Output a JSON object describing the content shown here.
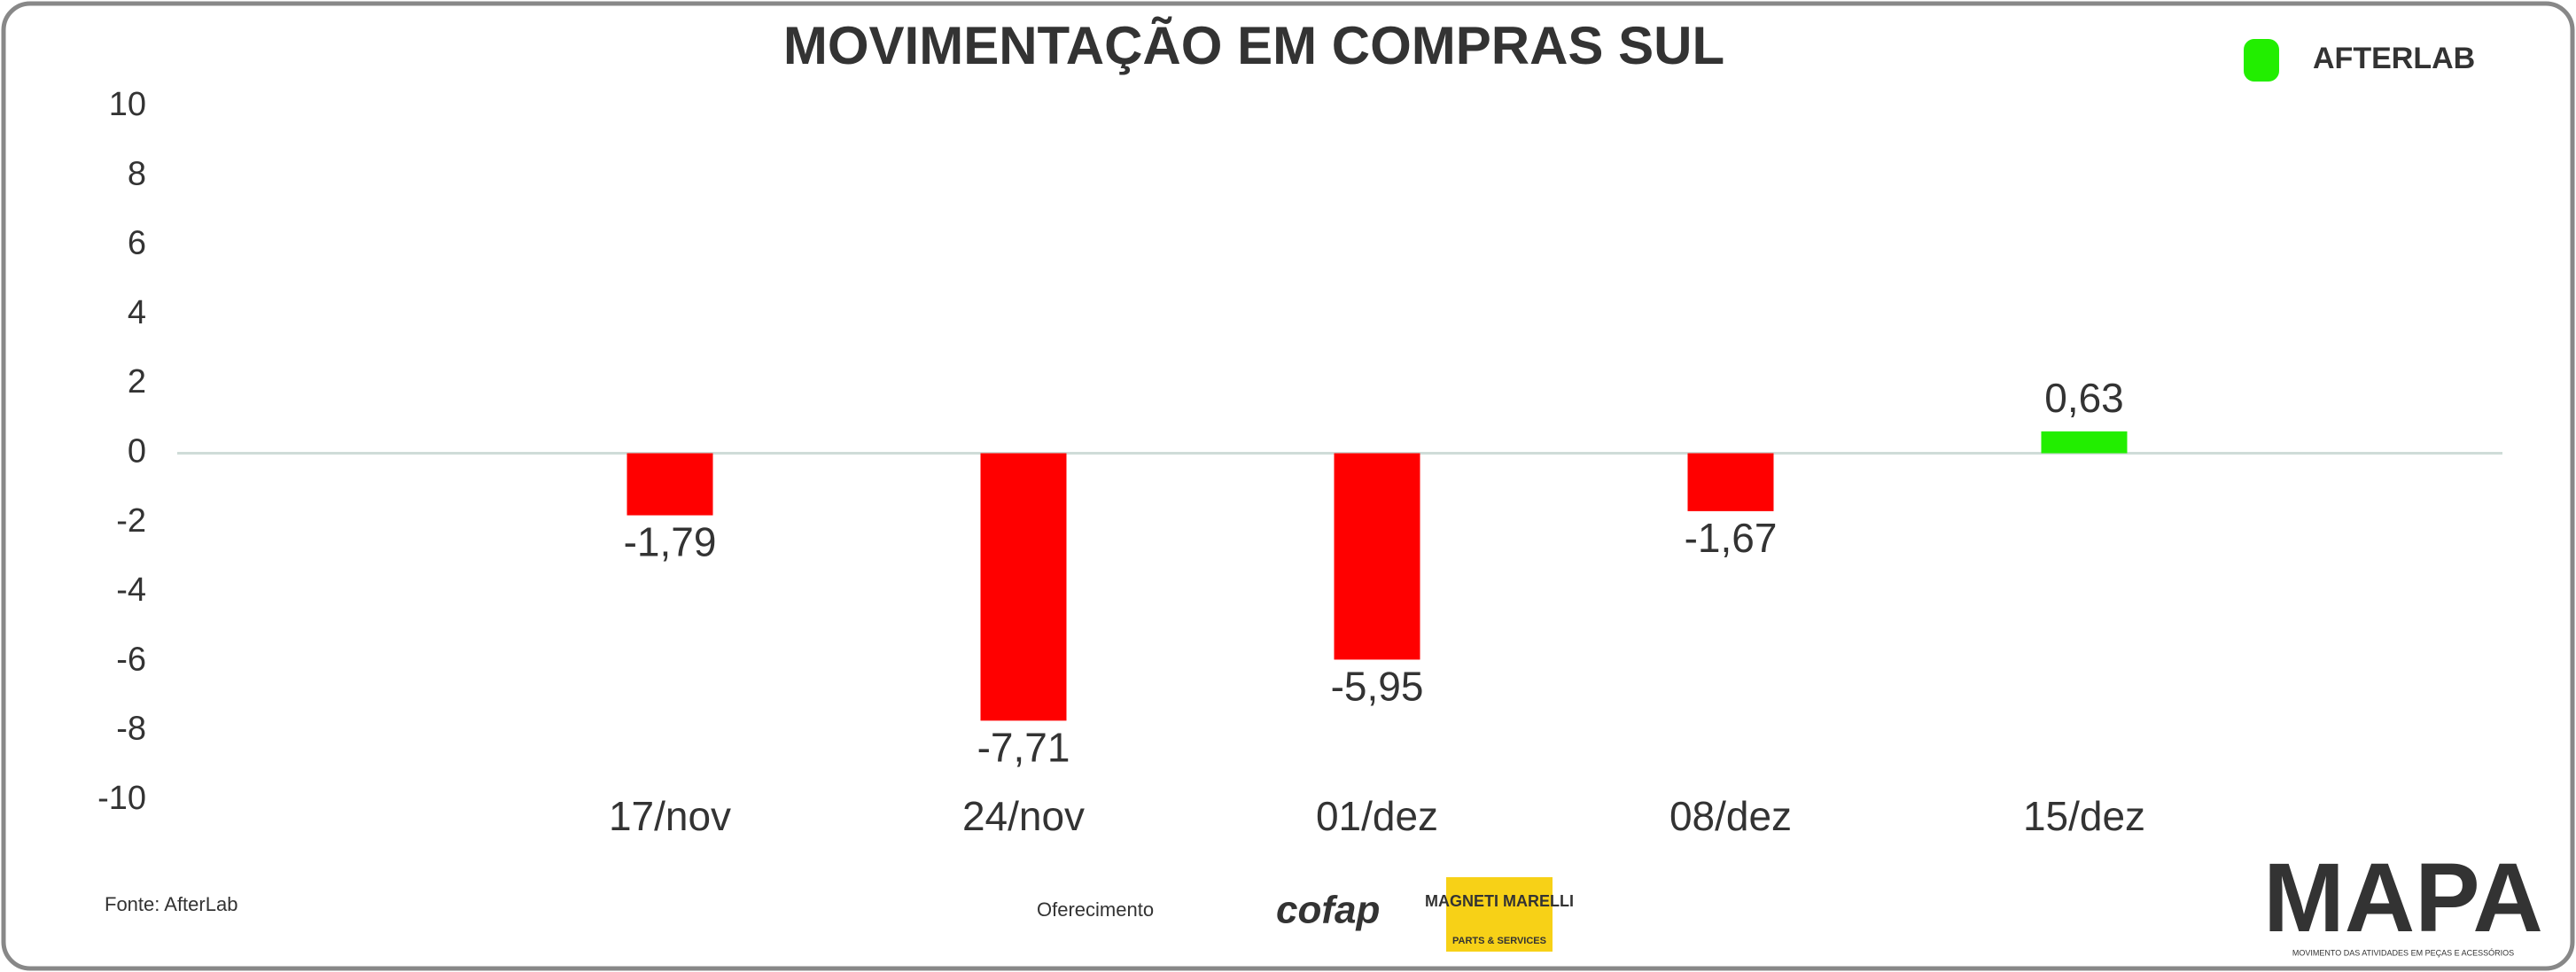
{
  "chart_data": {
    "type": "bar",
    "title": "MOVIMENTAÇÃO EM COMPRAS SUL",
    "categories": [
      "17/nov",
      "24/nov",
      "01/dez",
      "08/dez",
      "15/dez"
    ],
    "values": [
      -1.79,
      -7.71,
      -5.95,
      -1.67,
      0.63
    ],
    "value_labels": [
      "-1,79",
      "-7,71",
      "-5,95",
      "-1,67",
      "0,63"
    ],
    "colors": [
      "#ff0000",
      "#ff0000",
      "#ff0000",
      "#ff0000",
      "#22ee00"
    ],
    "ylim": [
      -10,
      10
    ],
    "yticks": [
      -10,
      -8,
      -6,
      -4,
      -2,
      0,
      2,
      4,
      6,
      8,
      10
    ],
    "grid": false
  },
  "footer": {
    "source": "Fonte: AfterLab",
    "sponsor_label": "Oferecimento",
    "sponsors": [
      "cofap",
      "MAGNETI MARELLI",
      "PARTS & SERVICES"
    ],
    "brand": "AFTERLAB",
    "mapa": "MAPA",
    "mapa_subtitle": "MOVIMENTO DAS ATIVIDADES EM PEÇAS E ACESSÓRIOS"
  }
}
